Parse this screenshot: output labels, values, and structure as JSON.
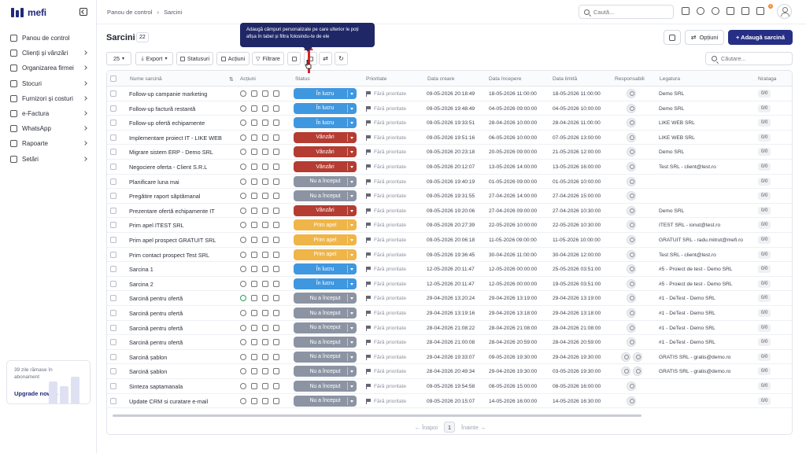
{
  "brand": {
    "name": "mefi"
  },
  "sidebar": {
    "items": [
      {
        "label": "Panou de control",
        "icon": "home-icon",
        "chevron": false
      },
      {
        "label": "Clienți și vânzări",
        "icon": "users-icon",
        "chevron": true
      },
      {
        "label": "Organizarea firmei",
        "icon": "briefcase-icon",
        "chevron": true
      },
      {
        "label": "Stocuri",
        "icon": "box-icon",
        "chevron": true
      },
      {
        "label": "Furnizori și costuri",
        "icon": "truck-icon",
        "chevron": true
      },
      {
        "label": "e-Factura",
        "icon": "invoice-icon",
        "chevron": true
      },
      {
        "label": "WhatsApp",
        "icon": "chat-icon",
        "chevron": true
      },
      {
        "label": "Rapoarte",
        "icon": "report-icon",
        "chevron": true
      },
      {
        "label": "Setări",
        "icon": "gear-icon",
        "chevron": true
      }
    ],
    "upgrade": {
      "text": "39 zile rămase în abonament",
      "link": "Upgrade now →"
    }
  },
  "topbar": {
    "breadcrumb": [
      "Panou de control",
      "Sarcini"
    ],
    "search_placeholder": "Caută...",
    "notifications_count": "1"
  },
  "page": {
    "title": "Sarcini",
    "count": "22",
    "options_label": "Opțiuni",
    "add_label": "+ Adaugă sarcină",
    "tooltip": "Adaugă câmpuri personalizate pe care ulterior le poți afișa în tabel și filtra folosindu-te de ele"
  },
  "toolbar": {
    "per_page": "25",
    "export": "Export",
    "statuses": "Statusuri",
    "actions": "Acțiuni",
    "filters": "Filtrare",
    "search_placeholder": "Căutare..."
  },
  "table": {
    "columns": [
      "Nume sarcină",
      "Acțiuni",
      "Status",
      "Prioritate",
      "Data creare",
      "Data începere",
      "Data limită",
      "Responsabili",
      "Legatura",
      "Nrataga"
    ],
    "rows": [
      {
        "name": "Follow-up campanie marketing",
        "status": "În lucru",
        "priority": "Fără prioritate",
        "created": "09-05-2026 20:18:49",
        "start": "18-05-2026 11:00:00",
        "due": "18-05-2026 11:00:00",
        "resp": 1,
        "link": "Demo SRL",
        "count": "0/0"
      },
      {
        "name": "Follow-up factură restantă",
        "status": "În lucru",
        "priority": "Fără prioritate",
        "created": "09-05-2026 19:48:49",
        "start": "04-05-2026 09:00:00",
        "due": "04-05-2026 10:00:00",
        "resp": 1,
        "link": "Demo SRL",
        "count": "0/0"
      },
      {
        "name": "Follow-up ofertă echipamente",
        "status": "În lucru",
        "priority": "Fără prioritate",
        "created": "09-05-2026 19:33:51",
        "start": "28-04-2026 10:00:00",
        "due": "28-04-2026 11:00:00",
        "resp": 1,
        "link": "LIKE WEB SRL",
        "count": "0/0"
      },
      {
        "name": "Implementare proiect IT - LIKE WEB",
        "status": "Vânzări",
        "priority": "Fără prioritate",
        "created": "09-05-2026 19:51:16",
        "start": "06-05-2026 10:00:00",
        "due": "07-05-2026 13:00:00",
        "resp": 1,
        "link": "LIKE WEB SRL",
        "count": "0/0"
      },
      {
        "name": "Migrare sistem ERP - Demo SRL",
        "status": "Vânzări",
        "priority": "Fără prioritate",
        "created": "09-05-2026 20:23:18",
        "start": "20-05-2026 09:00:00",
        "due": "21-05-2026 12:00:00",
        "resp": 1,
        "link": "Demo SRL",
        "count": "0/0"
      },
      {
        "name": "Negociere oferta - Client S.R.L",
        "status": "Vânzări",
        "priority": "Fără prioritate",
        "created": "09-05-2026 20:12:07",
        "start": "13-05-2026 14:00:00",
        "due": "13-05-2026 16:00:00",
        "resp": 1,
        "link": "Test SRL - client@test.ro",
        "count": "0/0"
      },
      {
        "name": "Planificare luna mai",
        "status": "Nu a început",
        "priority": "Fără prioritate",
        "created": "09-05-2026 19:40:19",
        "start": "01-05-2026 09:00:00",
        "due": "01-05-2026 10:00:00",
        "resp": 1,
        "link": "",
        "count": "0/0"
      },
      {
        "name": "Pregătire raport săptămanal",
        "status": "Nu a început",
        "priority": "Fără prioritate",
        "created": "09-05-2026 19:31:55",
        "start": "27-04-2026 14:00:00",
        "due": "27-04-2026 15:00:00",
        "resp": 1,
        "link": "",
        "count": "0/0"
      },
      {
        "name": "Prezentare ofertă echipamente IT",
        "status": "Vânzări",
        "priority": "Fără prioritate",
        "created": "09-05-2026 19:20:06",
        "start": "27-04-2026 09:00:00",
        "due": "27-04-2026 10:30:00",
        "resp": 1,
        "link": "Demo SRL",
        "count": "0/0"
      },
      {
        "name": "Prim apel ITEST SRL",
        "status": "Prim apel",
        "priority": "Fără prioritate",
        "created": "09-05-2026 20:27:39",
        "start": "22-05-2026 10:00:00",
        "due": "22-05-2026 10:30:00",
        "resp": 1,
        "link": "ITEST SRL - ionut@test.ro",
        "count": "0/0"
      },
      {
        "name": "Prim apel prospect GRATUIT SRL",
        "status": "Prim apel",
        "priority": "Fără prioritate",
        "created": "09-05-2026 20:06:18",
        "start": "11-05-2026 09:00:00",
        "due": "11-05-2026 10:00:00",
        "resp": 1,
        "link": "GRATUIT SRL - radu.mitrut@mefi.ro",
        "count": "0/0"
      },
      {
        "name": "Prim contact prospect Test SRL",
        "status": "Prim apel",
        "priority": "Fără prioritate",
        "created": "09-05-2026 19:36:45",
        "start": "30-04-2026 11:00:00",
        "due": "30-04-2026 12:00:00",
        "resp": 1,
        "link": "Test SRL - client@test.ro",
        "count": "0/0"
      },
      {
        "name": "Sarcina 1",
        "status": "În lucru",
        "priority": "Fără prioritate",
        "created": "12-05-2026 20:11:47",
        "start": "12-05-2026 00:00:00",
        "due": "25-05-2026 03:51:00",
        "resp": 1,
        "link": "#5 - Proiect de test - Demo SRL",
        "count": "0/0"
      },
      {
        "name": "Sarcina 2",
        "status": "În lucru",
        "priority": "Fără prioritate",
        "created": "12-05-2026 20:11:47",
        "start": "12-05-2026 00:00:00",
        "due": "19-05-2026 03:51:00",
        "resp": 1,
        "link": "#5 - Proiect de test - Demo SRL",
        "count": "0/0"
      },
      {
        "name": "Sarcină pentru ofertă",
        "status": "Nu a început",
        "priority": "Fără prioritate",
        "created": "29-04-2026 13:20:24",
        "start": "29-04-2026 13:19:00",
        "due": "29-04-2026 13:19:00",
        "resp": 1,
        "link": "#1 - DeTest - Demo SRL",
        "count": "0/0"
      },
      {
        "name": "Sarcină pentru ofertă",
        "status": "Nu a început",
        "priority": "Fără prioritate",
        "created": "29-04-2026 13:19:16",
        "start": "29-04-2026 13:18:00",
        "due": "29-04-2026 13:18:00",
        "resp": 1,
        "link": "#1 - DeTest - Demo SRL",
        "count": "0/0"
      },
      {
        "name": "Sarcină pentru ofertă",
        "status": "Nu a început",
        "priority": "Fără prioritate",
        "created": "28-04-2026 21:08:22",
        "start": "28-04-2026 21:08:00",
        "due": "28-04-2026 21:08:00",
        "resp": 1,
        "link": "#1 - DeTest - Demo SRL",
        "count": "0/0"
      },
      {
        "name": "Sarcină pentru ofertă",
        "status": "Nu a început",
        "priority": "Fără prioritate",
        "created": "28-04-2026 21:00:08",
        "start": "28-04-2026 20:59:00",
        "due": "28-04-2026 20:59:00",
        "resp": 1,
        "link": "#1 - DeTest - Demo SRL",
        "count": "0/0"
      },
      {
        "name": "Sarcină șablon",
        "status": "Nu a început",
        "priority": "Fără prioritate",
        "created": "29-04-2026 19:33:07",
        "start": "09-05-2026 19:30:00",
        "due": "29-04-2026 19:30:00",
        "resp": 2,
        "link": "GRATIS SRL - gratis@demo.ro",
        "count": "0/0"
      },
      {
        "name": "Sarcină șablon",
        "status": "Nu a început",
        "priority": "Fără prioritate",
        "created": "28-04-2026 20:49:34",
        "start": "29-04-2026 19:30:00",
        "due": "03-05-2026 19:30:00",
        "resp": 2,
        "link": "GRATIS SRL - gratis@demo.ro",
        "count": "0/0"
      },
      {
        "name": "Sinteza saptamanala",
        "status": "Nu a început",
        "priority": "Fără prioritate",
        "created": "09-05-2026 19:54:58",
        "start": "08-05-2026 15:00:00",
        "due": "08-05-2026 16:00:00",
        "resp": 1,
        "link": "",
        "count": "0/0"
      },
      {
        "name": "Update CRM si curatare e-mail",
        "status": "Nu a început",
        "priority": "Fără prioritate",
        "created": "09-05-2026 20:15:07",
        "start": "14-05-2026 16:00:00",
        "due": "14-05-2026 16:30:00",
        "resp": 1,
        "link": "",
        "count": "0/0"
      }
    ]
  },
  "status_colors": {
    "În lucru": "#3f97e0",
    "Vânzări": "#b43c32",
    "Nu a început": "#8c94a3",
    "Prim apel": "#efb548"
  },
  "pager": {
    "prev": "← Înapoi",
    "page": "1",
    "next": "Înainte →"
  }
}
